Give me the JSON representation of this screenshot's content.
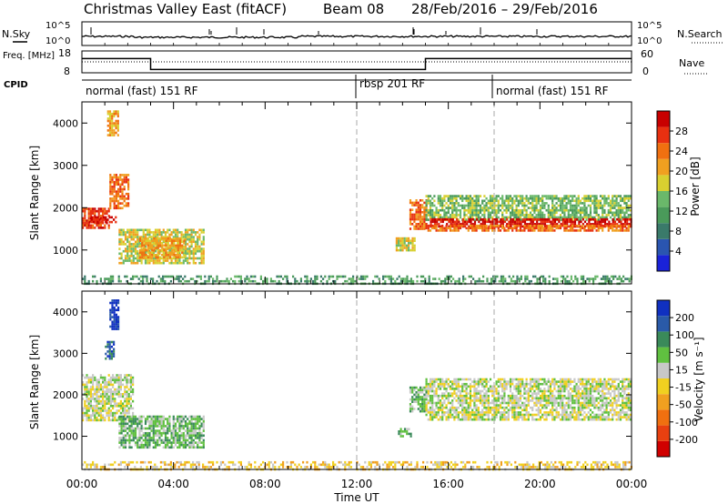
{
  "header": {
    "title": "Christmas Valley East (fitACF)",
    "beam": "Beam 08",
    "dates": "28/Feb/2016 – 29/Feb/2016"
  },
  "colors": {
    "power_scale": [
      "#1a22d8",
      "#2a55b0",
      "#3a7a6a",
      "#4a9a5a",
      "#6ab86a",
      "#d8d030",
      "#f0a020",
      "#f07010",
      "#e83010",
      "#c80000"
    ],
    "velocity_scale": [
      "#1030c0",
      "#2a5aa8",
      "#3a8a5a",
      "#60c040",
      "#c8c8c8",
      "#f0d020",
      "#f0a020",
      "#f07010",
      "#e84010",
      "#d00000"
    ],
    "dashed_line": "#aaaaaa"
  },
  "chart_data": [
    {
      "type": "line",
      "name": "status-panel",
      "left_labels": [
        "N.Sky",
        "Freq. [MHz]",
        "CPID"
      ],
      "right_labels": [
        "N.Search",
        "Nave"
      ],
      "nsky_ticks": [
        "10^5",
        "10^0"
      ],
      "nsearch_ticks": [
        "10^5",
        "10^0"
      ],
      "freq_ticks": [
        "18",
        "8"
      ],
      "nave_ticks": [
        "60",
        "0"
      ],
      "freq_series": {
        "x": [
          0,
          3,
          3,
          15,
          15,
          24
        ],
        "y": [
          14.5,
          14.5,
          9.5,
          9.5,
          14.5,
          14.5
        ]
      },
      "nave_series": {
        "x": [
          0,
          24
        ],
        "y": [
          30,
          30
        ]
      },
      "cpid_segments": [
        {
          "start": 0,
          "end": 12,
          "label": "normal (fast) 151 RF"
        },
        {
          "start": 12,
          "end": 18,
          "label": "rbsp 201 RF"
        },
        {
          "start": 18,
          "end": 24,
          "label": "normal (fast) 151 RF"
        }
      ]
    },
    {
      "type": "heatmap",
      "name": "power",
      "ylabel": "Slant Range [km]",
      "colorbar_label": "Power [dB]",
      "colorbar_ticks": [
        "28",
        "24",
        "20",
        "16",
        "12",
        "8",
        "4"
      ],
      "y_ticks": [
        "4000",
        "3000",
        "2000",
        "1000"
      ],
      "xlim": [
        0,
        24
      ],
      "ylim": [
        200,
        4500
      ],
      "regions": [
        {
          "t0": 0.0,
          "t1": 1.2,
          "r0": 1500,
          "r1": 2000,
          "level": 8
        },
        {
          "t0": 0.3,
          "t1": 1.6,
          "r0": 1650,
          "r1": 1800,
          "level": 9
        },
        {
          "t0": 1.2,
          "t1": 2.0,
          "r0": 2000,
          "r1": 2800,
          "level": 7
        },
        {
          "t0": 1.6,
          "t1": 5.3,
          "r0": 700,
          "r1": 1500,
          "level": 5
        },
        {
          "t0": 2.5,
          "t1": 4.5,
          "r0": 850,
          "r1": 1300,
          "level": 6
        },
        {
          "t0": 1.1,
          "t1": 1.6,
          "r0": 3700,
          "r1": 4300,
          "level": 6
        },
        {
          "t0": 13.7,
          "t1": 14.5,
          "r0": 1000,
          "r1": 1300,
          "level": 5
        },
        {
          "t0": 14.3,
          "t1": 15.0,
          "r0": 1500,
          "r1": 2200,
          "level": 7
        },
        {
          "t0": 15.0,
          "t1": 24.0,
          "r0": 1700,
          "r1": 2300,
          "level": 4
        },
        {
          "t0": 15.2,
          "t1": 24.0,
          "r0": 1550,
          "r1": 1750,
          "level": 9
        },
        {
          "t0": 15.0,
          "t1": 24.0,
          "r0": 1450,
          "r1": 1600,
          "level": 7
        },
        {
          "t0": 0.0,
          "t1": 24.0,
          "r0": 200,
          "r1": 400,
          "level": 3
        }
      ]
    },
    {
      "type": "heatmap",
      "name": "velocity",
      "ylabel": "Slant Range [km]",
      "colorbar_label": "Velocity [m s⁻¹]",
      "colorbar_ticks": [
        "200",
        "100",
        "50",
        "15",
        "-15",
        "-50",
        "-100",
        "-200"
      ],
      "y_ticks": [
        "4000",
        "3000",
        "2000",
        "1000"
      ],
      "x_ticks": [
        "00:00",
        "04:00",
        "08:00",
        "12:00",
        "16:00",
        "20:00",
        "00:00"
      ],
      "xlabel": "Time UT",
      "xlim": [
        0,
        24
      ],
      "ylim": [
        200,
        4500
      ],
      "regions": [
        {
          "t0": 0.0,
          "t1": 2.2,
          "r0": 1400,
          "r1": 2500,
          "level": 4
        },
        {
          "t0": 1.6,
          "t1": 5.3,
          "r0": 750,
          "r1": 1500,
          "level": 3
        },
        {
          "t0": 1.2,
          "t1": 1.6,
          "r0": 3600,
          "r1": 4300,
          "level": 0
        },
        {
          "t0": 1.0,
          "t1": 1.4,
          "r0": 2900,
          "r1": 3300,
          "level": 1
        },
        {
          "t0": 13.8,
          "t1": 14.4,
          "r0": 1000,
          "r1": 1200,
          "level": 3
        },
        {
          "t0": 14.3,
          "t1": 15.0,
          "r0": 1600,
          "r1": 2200,
          "level": 3
        },
        {
          "t0": 15.0,
          "t1": 24.0,
          "r0": 1400,
          "r1": 2400,
          "level": 4
        },
        {
          "t0": 0.0,
          "t1": 24.0,
          "r0": 200,
          "r1": 400,
          "level": 5
        }
      ]
    }
  ]
}
